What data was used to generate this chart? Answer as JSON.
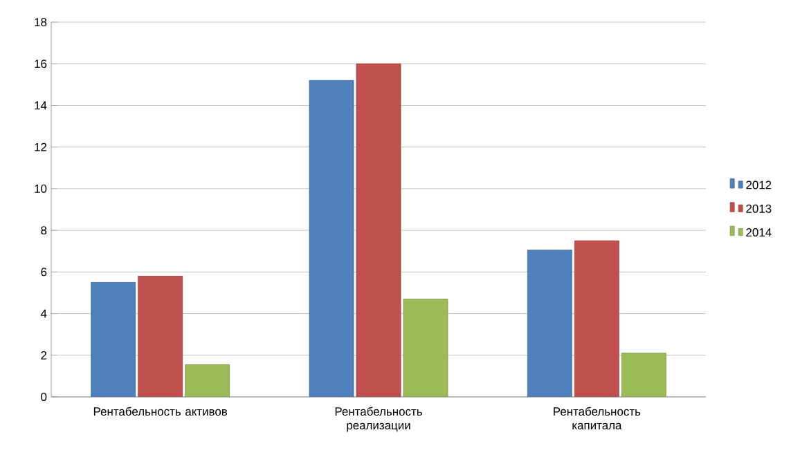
{
  "chart_data": {
    "type": "bar",
    "categories": [
      "Рентабельность активов",
      "Рентабельность реализации",
      "Рентабельность капитала"
    ],
    "series": [
      {
        "name": "2012",
        "color": "#4f81bd",
        "values": [
          5.5,
          15.2,
          7.05
        ]
      },
      {
        "name": "2013",
        "color": "#c0504d",
        "values": [
          5.8,
          16.0,
          7.5
        ]
      },
      {
        "name": "2014",
        "color": "#9bbb59",
        "values": [
          1.55,
          4.7,
          2.1
        ]
      }
    ],
    "ylim": [
      0,
      18
    ],
    "yticks": [
      0,
      2,
      4,
      6,
      8,
      10,
      12,
      14,
      16,
      18
    ],
    "grid": "y",
    "legend": "right"
  }
}
